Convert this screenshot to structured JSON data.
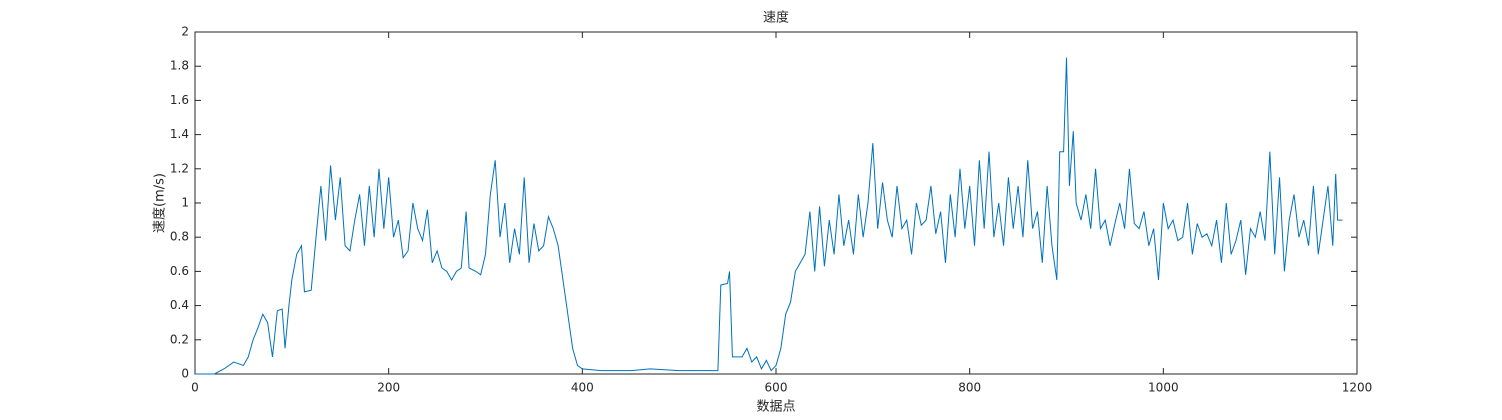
{
  "chart_data": {
    "type": "line",
    "title": "速度",
    "xlabel": "数据点",
    "ylabel": "速度(m/s)",
    "color": "#0072bd",
    "xlim": [
      0,
      1200
    ],
    "xticks": [
      0,
      200,
      400,
      600,
      800,
      1000,
      1200
    ],
    "ylim": [
      0,
      2
    ],
    "yticks": [
      0,
      0.2,
      0.4,
      0.6,
      0.8,
      1,
      1.2,
      1.4,
      1.6,
      1.8,
      2
    ],
    "x": [
      0,
      20,
      30,
      40,
      50,
      55,
      60,
      65,
      70,
      75,
      80,
      85,
      90,
      93,
      97,
      100,
      105,
      110,
      113,
      120,
      125,
      130,
      135,
      140,
      145,
      150,
      155,
      160,
      165,
      170,
      175,
      180,
      185,
      190,
      195,
      200,
      205,
      210,
      215,
      220,
      225,
      230,
      235,
      240,
      245,
      250,
      255,
      260,
      265,
      270,
      275,
      280,
      283,
      290,
      295,
      300,
      305,
      310,
      315,
      320,
      325,
      330,
      335,
      340,
      345,
      350,
      355,
      360,
      365,
      370,
      375,
      380,
      385,
      390,
      395,
      400,
      420,
      450,
      470,
      500,
      540,
      543,
      550,
      552,
      555,
      565,
      570,
      575,
      580,
      585,
      590,
      595,
      600,
      605,
      610,
      615,
      620,
      630,
      635,
      640,
      645,
      650,
      655,
      660,
      665,
      670,
      675,
      680,
      685,
      690,
      695,
      700,
      705,
      710,
      715,
      720,
      725,
      730,
      735,
      740,
      745,
      750,
      755,
      760,
      765,
      770,
      775,
      780,
      785,
      790,
      795,
      800,
      805,
      810,
      815,
      820,
      825,
      830,
      835,
      840,
      845,
      850,
      855,
      860,
      865,
      870,
      875,
      880,
      885,
      890,
      893,
      897,
      900,
      903,
      907,
      910,
      915,
      920,
      925,
      930,
      935,
      940,
      945,
      950,
      955,
      960,
      965,
      970,
      975,
      980,
      985,
      990,
      995,
      1000,
      1005,
      1010,
      1015,
      1020,
      1025,
      1030,
      1035,
      1040,
      1045,
      1050,
      1055,
      1060,
      1065,
      1070,
      1075,
      1080,
      1085,
      1090,
      1095,
      1100,
      1105,
      1110,
      1115,
      1120,
      1125,
      1130,
      1135,
      1140,
      1145,
      1150,
      1155,
      1160,
      1165,
      1170,
      1175,
      1178,
      1180,
      1185
    ],
    "values": [
      0,
      0,
      0.03,
      0.07,
      0.05,
      0.1,
      0.2,
      0.27,
      0.35,
      0.3,
      0.1,
      0.37,
      0.38,
      0.15,
      0.4,
      0.55,
      0.7,
      0.75,
      0.48,
      0.49,
      0.8,
      1.1,
      0.78,
      1.22,
      0.9,
      1.15,
      0.75,
      0.72,
      0.9,
      1.05,
      0.75,
      1.1,
      0.8,
      1.2,
      0.85,
      1.15,
      0.8,
      0.9,
      0.68,
      0.72,
      1.0,
      0.85,
      0.78,
      0.96,
      0.65,
      0.72,
      0.62,
      0.6,
      0.55,
      0.6,
      0.62,
      0.95,
      0.62,
      0.6,
      0.58,
      0.7,
      1.05,
      1.25,
      0.8,
      1.0,
      0.65,
      0.85,
      0.7,
      1.15,
      0.65,
      0.88,
      0.72,
      0.75,
      0.92,
      0.85,
      0.75,
      0.55,
      0.35,
      0.15,
      0.05,
      0.03,
      0.02,
      0.02,
      0.03,
      0.02,
      0.02,
      0.52,
      0.53,
      0.6,
      0.1,
      0.1,
      0.15,
      0.07,
      0.1,
      0.03,
      0.08,
      0.02,
      0.05,
      0.15,
      0.35,
      0.42,
      0.6,
      0.7,
      0.95,
      0.6,
      0.98,
      0.63,
      0.9,
      0.7,
      1.05,
      0.75,
      0.9,
      0.7,
      1.05,
      0.8,
      1.0,
      1.35,
      0.85,
      1.12,
      0.9,
      0.8,
      1.1,
      0.85,
      0.9,
      0.7,
      1.0,
      0.87,
      0.9,
      1.1,
      0.82,
      0.95,
      0.65,
      1.05,
      0.8,
      1.2,
      0.85,
      1.1,
      0.75,
      1.25,
      0.85,
      1.3,
      0.8,
      1.0,
      0.75,
      1.15,
      0.85,
      1.1,
      0.8,
      1.25,
      0.85,
      0.95,
      0.65,
      1.1,
      0.75,
      0.55,
      1.3,
      1.3,
      1.85,
      1.1,
      1.42,
      1.0,
      0.9,
      1.05,
      0.85,
      1.2,
      0.85,
      0.9,
      0.75,
      0.88,
      1.0,
      0.85,
      1.2,
      0.88,
      0.85,
      0.95,
      0.75,
      0.85,
      0.55,
      1.0,
      0.85,
      0.9,
      0.78,
      0.8,
      1.0,
      0.7,
      0.88,
      0.8,
      0.82,
      0.75,
      0.9,
      0.65,
      1.0,
      0.7,
      0.78,
      0.9,
      0.58,
      0.85,
      0.8,
      0.95,
      0.78,
      1.3,
      0.7,
      1.15,
      0.6,
      0.9,
      1.05,
      0.8,
      0.9,
      0.75,
      1.1,
      0.7,
      0.9,
      1.1,
      0.75,
      1.17,
      0.9,
      0.9
    ]
  }
}
